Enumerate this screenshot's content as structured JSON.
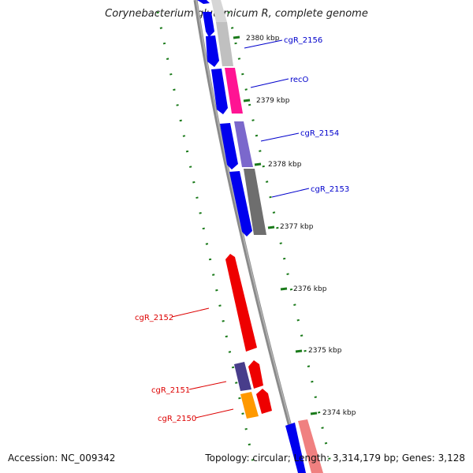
{
  "title": "Corynebacterium glutamicum R, complete genome",
  "footer": {
    "accession": "Accession: NC_009342",
    "topology": "Topology: circular; Length: 3,314,179 bp; Genes: 3,128"
  },
  "ticks": [
    "2380 kbp",
    "2379 kbp",
    "2378 kbp",
    "2377 kbp",
    "2376 kbp",
    "2375 kbp",
    "2374 kbp"
  ],
  "genes": [
    {
      "name": "cgR_2156",
      "color": "#0000cc"
    },
    {
      "name": "recO",
      "color": "#0000cc"
    },
    {
      "name": "cgR_2154",
      "color": "#0000cc"
    },
    {
      "name": "cgR_2153",
      "color": "#0000cc"
    },
    {
      "name": "cgR_2152",
      "color": "#dd0000"
    },
    {
      "name": "cgR_2151",
      "color": "#dd0000"
    },
    {
      "name": "cgR_2150",
      "color": "#dd0000"
    }
  ],
  "colors": {
    "backbone": "#888888",
    "tick_marks": "#1a7a1a",
    "cds_forward": "#0000ee",
    "cds_reverse": "#ee0000"
  }
}
